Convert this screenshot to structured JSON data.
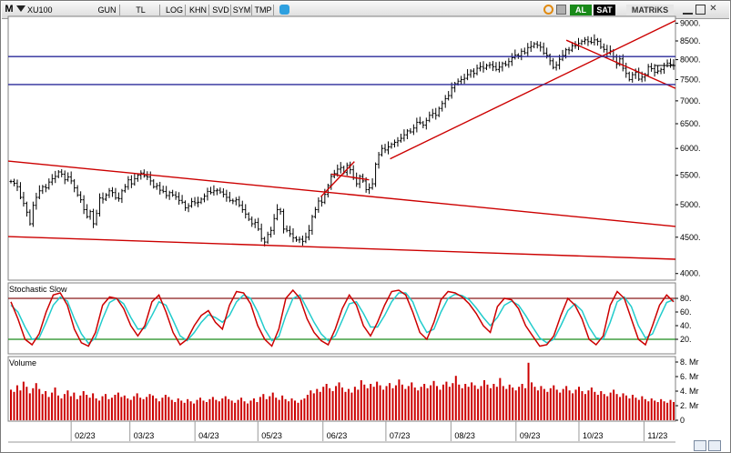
{
  "toolbar": {
    "symbol_prefix": "M",
    "symbol": "XU100",
    "buttons": [
      "GUN",
      "TL",
      "LOG",
      "KHN",
      "SVD",
      "SYM",
      "TMP"
    ],
    "buy_label": "AL",
    "sell_label": "SAT",
    "brand": "MATRiKS",
    "colors": {
      "buy": "#1a8a1a",
      "sell": "#cc1111",
      "brand_bg": "#e8e8e8"
    }
  },
  "icons": [
    "dropdown-icon",
    "twitter-icon",
    "refresh-icon",
    "settings-icon",
    "minimize-icon",
    "maximize-icon",
    "close-icon"
  ],
  "chart_data": [
    {
      "type": "ohlc",
      "panel": "price",
      "title": "",
      "yticks": [
        4000,
        4500,
        5000,
        5500,
        6000,
        6500,
        7000,
        7500,
        8000,
        8500,
        9000
      ],
      "ytick_labels": [
        "4000.",
        "4500.",
        "5000.",
        "5500.",
        "6000.",
        "6500.",
        "7000.",
        "7500.",
        "8000.",
        "8500.",
        "9000."
      ],
      "ylim": [
        3950,
        9150
      ],
      "y_scale": "log",
      "xlabels": [
        "02/23",
        "03/23",
        "04/23",
        "05/23",
        "06/23",
        "07/23",
        "08/23",
        "09/23",
        "10/23",
        "11/23"
      ],
      "x_date_range": [
        "2023-01-02",
        "2023-11-16"
      ],
      "close": [
        5390,
        5360,
        5300,
        5120,
        5020,
        4880,
        4700,
        4990,
        5120,
        5230,
        5300,
        5280,
        5380,
        5440,
        5480,
        5560,
        5520,
        5420,
        5470,
        5400,
        5280,
        5160,
        5080,
        4920,
        4810,
        4890,
        4700,
        4860,
        5110,
        5090,
        5160,
        5230,
        5200,
        5110,
        5100,
        5230,
        5300,
        5420,
        5350,
        5440,
        5500,
        5540,
        5490,
        5470,
        5400,
        5300,
        5320,
        5240,
        5220,
        5150,
        5200,
        5160,
        5130,
        5070,
        5040,
        4950,
        4980,
        5050,
        5030,
        5040,
        5090,
        5140,
        5220,
        5200,
        5230,
        5240,
        5210,
        5170,
        5120,
        5070,
        5060,
        5080,
        4990,
        4920,
        4850,
        4770,
        4700,
        4720,
        4620,
        4480,
        4430,
        4540,
        4600,
        4780,
        4920,
        4890,
        4620,
        4600,
        4550,
        4490,
        4460,
        4470,
        4440,
        4500,
        4600,
        4810,
        4920,
        5060,
        5040,
        5170,
        5320,
        5480,
        5530,
        5610,
        5640,
        5550,
        5680,
        5600,
        5450,
        5350,
        5480,
        5400,
        5250,
        5280,
        5350,
        5700,
        5880,
        6000,
        5970,
        6030,
        6080,
        6120,
        6150,
        6200,
        6270,
        6350,
        6330,
        6410,
        6530,
        6520,
        6470,
        6570,
        6680,
        6720,
        6680,
        6830,
        6940,
        7050,
        7120,
        7300,
        7400,
        7460,
        7500,
        7530,
        7620,
        7710,
        7650,
        7780,
        7820,
        7780,
        7850,
        7870,
        7820,
        7750,
        7810,
        7900,
        7870,
        7950,
        8050,
        8120,
        8100,
        8220,
        8180,
        8320,
        8350,
        8420,
        8380,
        8330,
        8170,
        8110,
        7970,
        7800,
        7860,
        8010,
        8110,
        8260,
        8250,
        8370,
        8370,
        8430,
        8490,
        8530,
        8480,
        8460,
        8530,
        8490,
        8330,
        8270,
        8170,
        8230,
        8070,
        7880,
        8020,
        7780,
        7650,
        7500,
        7620,
        7680,
        7510,
        7560,
        7620,
        7820,
        7770,
        7680,
        7710,
        7750,
        7850,
        7910,
        7870,
        7850
      ],
      "overlay_lines": [
        {
          "name": "",
          "color": "#cc0000",
          "from": [
            "2023-01-02",
            5760
          ],
          "to": [
            "2023-11-16",
            4660
          ]
        },
        {
          "name": "",
          "color": "#cc0000",
          "from": [
            "2023-01-02",
            4510
          ],
          "to": [
            "2023-11-16",
            4190
          ]
        },
        {
          "name": "",
          "color": "#cc0000",
          "from": [
            "2023-07-03",
            5800
          ],
          "to": [
            "2023-11-16",
            9080
          ]
        },
        {
          "name": "",
          "color": "#cc0000",
          "from": [
            "2023-05-31",
            5130
          ],
          "to": [
            "2023-06-16",
            5750
          ]
        },
        {
          "name": "",
          "color": "#cc0000",
          "from": [
            "2023-06-05",
            5520
          ],
          "to": [
            "2023-06-23",
            5420
          ]
        },
        {
          "name": "",
          "color": "#cc0000",
          "from": [
            "2023-09-25",
            8520
          ],
          "to": [
            "2023-11-16",
            7290
          ]
        },
        {
          "name": "",
          "color": "#2a2a9a",
          "from": [
            "2023-01-02",
            8080
          ],
          "to": [
            "2023-11-16",
            8080
          ]
        },
        {
          "name": "",
          "color": "#2a2a9a",
          "from": [
            "2023-01-02",
            7380
          ],
          "to": [
            "2023-11-16",
            7380
          ]
        },
        {
          "name": "",
          "color": "#000000",
          "from": [
            "2023-11-06",
            7850
          ],
          "to": [
            "2023-11-16",
            7850
          ]
        }
      ]
    },
    {
      "type": "line",
      "panel": "stochastic",
      "title": "Stochastic Slow",
      "yticks": [
        20,
        40,
        60,
        80
      ],
      "ytick_labels": [
        "20.",
        "40.",
        "60.",
        "80."
      ],
      "ylim": [
        0,
        100
      ],
      "levels": [
        {
          "value": 80,
          "color": "#8b1a1a"
        },
        {
          "value": 20,
          "color": "#1a8a1a"
        }
      ],
      "series": [
        {
          "name": "",
          "color": "#cc0000",
          "values": [
            75,
            50,
            20,
            12,
            28,
            60,
            85,
            88,
            70,
            35,
            15,
            10,
            30,
            70,
            82,
            80,
            65,
            40,
            25,
            40,
            75,
            85,
            60,
            30,
            12,
            20,
            40,
            55,
            62,
            45,
            35,
            70,
            90,
            88,
            72,
            40,
            20,
            10,
            35,
            80,
            92,
            80,
            50,
            30,
            18,
            12,
            35,
            65,
            85,
            70,
            40,
            25,
            45,
            70,
            90,
            92,
            85,
            60,
            30,
            20,
            45,
            78,
            90,
            88,
            82,
            72,
            58,
            40,
            30,
            68,
            80,
            78,
            65,
            40,
            25,
            10,
            12,
            25,
            55,
            80,
            70,
            50,
            20,
            12,
            25,
            70,
            90,
            80,
            50,
            20,
            12,
            40,
            70,
            85,
            75
          ]
        },
        {
          "name": "",
          "color": "#22cccc",
          "values": [
            70,
            60,
            38,
            20,
            22,
            45,
            70,
            82,
            76,
            50,
            28,
            14,
            22,
            50,
            74,
            80,
            72,
            52,
            35,
            36,
            55,
            75,
            70,
            48,
            25,
            18,
            30,
            45,
            56,
            52,
            45,
            55,
            75,
            85,
            80,
            60,
            35,
            18,
            24,
            55,
            80,
            85,
            65,
            45,
            28,
            18,
            25,
            48,
            72,
            75,
            58,
            38,
            38,
            55,
            75,
            88,
            88,
            75,
            48,
            30,
            35,
            60,
            80,
            86,
            84,
            78,
            66,
            52,
            40,
            52,
            70,
            76,
            70,
            55,
            38,
            22,
            15,
            20,
            40,
            62,
            72,
            62,
            38,
            22,
            20,
            45,
            75,
            82,
            68,
            40,
            22,
            28,
            52,
            74,
            78
          ]
        }
      ]
    },
    {
      "type": "bar",
      "panel": "volume",
      "title": "Volume",
      "yticks": [
        0,
        2,
        4,
        6,
        8
      ],
      "ytick_labels": [
        "0",
        "2. Mr",
        "4. Mr",
        "6. Mr",
        "8. Mr"
      ],
      "ylim": [
        0,
        8.5
      ],
      "color": "#cc0000",
      "values": [
        4.2,
        3.9,
        4.8,
        4.1,
        5.3,
        4.6,
        3.7,
        4.4,
        5.1,
        4.3,
        3.6,
        4.0,
        3.2,
        3.8,
        4.5,
        3.4,
        3.0,
        3.6,
        4.1,
        3.3,
        3.8,
        2.9,
        3.4,
        4.0,
        3.5,
        3.1,
        3.7,
        3.0,
        2.7,
        3.3,
        3.6,
        2.9,
        3.1,
        3.5,
        3.8,
        3.2,
        3.4,
        3.0,
        2.8,
        3.3,
        3.7,
        3.1,
        2.9,
        3.2,
        3.6,
        3.4,
        3.0,
        2.6,
        3.1,
        3.5,
        3.2,
        2.8,
        2.5,
        3.0,
        2.7,
        2.4,
        2.9,
        2.6,
        2.3,
        2.8,
        3.1,
        2.7,
        2.5,
        2.9,
        3.2,
        2.8,
        2.6,
        3.0,
        3.3,
        2.9,
        2.7,
        2.4,
        2.8,
        3.1,
        2.6,
        2.3,
        2.7,
        3.0,
        2.5,
        3.2,
        3.6,
        2.9,
        3.3,
        3.8,
        3.1,
        2.8,
        3.4,
        2.9,
        2.6,
        3.0,
        2.7,
        2.4,
        2.8,
        3.0,
        3.5,
        4.1,
        3.7,
        4.3,
        3.9,
        4.6,
        5.0,
        4.4,
        4.0,
        4.7,
        5.2,
        4.5,
        3.9,
        4.3,
        3.8,
        4.6,
        4.2,
        5.5,
        4.9,
        4.4,
        5.0,
        4.6,
        5.3,
        4.8,
        4.2,
        4.7,
        5.1,
        4.4,
        4.8,
        5.6,
        4.9,
        4.3,
        4.7,
        5.2,
        4.5,
        4.1,
        4.6,
        5.0,
        4.4,
        4.8,
        5.4,
        4.7,
        4.2,
        4.9,
        5.3,
        4.6,
        5.1,
        6.1,
        4.9,
        4.4,
        5.0,
        4.6,
        5.2,
        4.8,
        4.3,
        4.7,
        5.5,
        4.9,
        4.4,
        5.0,
        4.6,
        5.8,
        4.7,
        4.3,
        4.9,
        4.5,
        4.1,
        4.6,
        5.0,
        4.4,
        7.9,
        5.2,
        4.6,
        4.1,
        4.7,
        4.3,
        3.9,
        4.4,
        4.8,
        4.2,
        3.8,
        4.3,
        4.7,
        4.1,
        3.7,
        4.2,
        4.6,
        4.0,
        3.6,
        4.1,
        4.5,
        3.9,
        3.5,
        4.0,
        3.6,
        3.3,
        3.8,
        4.2,
        3.6,
        3.2,
        3.7,
        3.4,
        3.0,
        3.5,
        3.1,
        2.8,
        3.3,
        2.9,
        2.6,
        3.0,
        2.7,
        2.5,
        2.9,
        2.6,
        2.4,
        2.8,
        2.5
      ]
    }
  ]
}
